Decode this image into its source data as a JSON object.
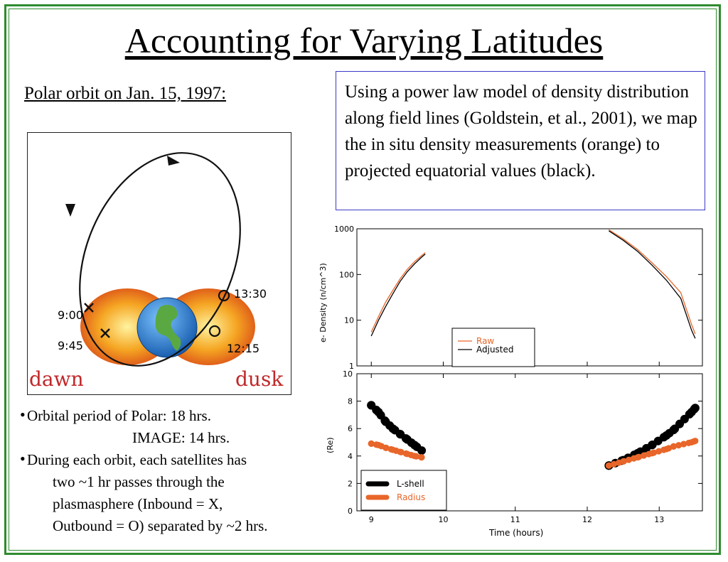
{
  "title": "Accounting for Varying Latitudes",
  "subtitle": "Polar orbit on Jan. 15, 1997:",
  "description": "Using a power law model of density distribution along field lines (Goldstein, et al., 2001), we map the in situ density measurements (orange) to projected equatorial values (black).",
  "orbit_diagram": {
    "labels": {
      "t1": "13:30",
      "t2": "9:00",
      "t3": "9:45",
      "t4": "12:15",
      "dawn": "dawn",
      "dusk": "dusk"
    },
    "colors": {
      "dawn_dusk": "#c0282a",
      "plasmasphere": "#f29a1e",
      "earth": "#2a7fd0",
      "land": "#5aa842"
    }
  },
  "bullets": {
    "b1_line1": "Orbital period of Polar: 18 hrs.",
    "b1_line2": "IMAGE: 14 hrs.",
    "b2_line1": "During each orbit, each satellites has",
    "b2_line2": "two ~1 hr passes through the",
    "b2_line3": "plasmasphere (Inbound = X,",
    "b2_line4": "Outbound = O) separated by ~2 hrs."
  },
  "chart_data": [
    {
      "type": "line",
      "ylabel": "e- Density (n/cm^3)",
      "yscale": "log",
      "ylim": [
        1,
        1000
      ],
      "xlim": [
        8.8,
        13.6
      ],
      "yticks": [
        "1",
        "10",
        "100",
        "1000"
      ],
      "legend_placement": "bottom-center",
      "series": [
        {
          "name": "Raw",
          "color": "#e8662a",
          "x": [
            9.0,
            9.1,
            9.2,
            9.3,
            9.4,
            9.5,
            9.6,
            9.7,
            9.75,
            12.3,
            12.5,
            12.7,
            12.9,
            13.1,
            13.3,
            13.45,
            13.5
          ],
          "y": [
            5.5,
            12,
            25,
            45,
            80,
            130,
            190,
            260,
            300,
            950,
            600,
            350,
            180,
            90,
            40,
            8,
            5
          ]
        },
        {
          "name": "Adjusted",
          "color": "#000000",
          "x": [
            9.0,
            9.1,
            9.2,
            9.3,
            9.4,
            9.5,
            9.6,
            9.7,
            9.75,
            12.3,
            12.5,
            12.7,
            12.9,
            13.1,
            13.3,
            13.45,
            13.5
          ],
          "y": [
            4.5,
            10,
            20,
            38,
            70,
            115,
            170,
            240,
            280,
            900,
            560,
            320,
            160,
            75,
            30,
            6,
            4
          ]
        }
      ]
    },
    {
      "type": "scatter",
      "xlabel": "Time  (hours)",
      "ylabel": "(Re)",
      "ylim": [
        0,
        10
      ],
      "xlim": [
        8.8,
        13.6
      ],
      "xticks": [
        "9",
        "10",
        "11",
        "12",
        "13"
      ],
      "yticks": [
        "0",
        "2",
        "4",
        "6",
        "8",
        "10"
      ],
      "legend_placement": "bottom-left",
      "series": [
        {
          "name": "L-shell",
          "color": "#000000",
          "x": [
            9.0,
            9.1,
            9.2,
            9.3,
            9.4,
            9.5,
            9.6,
            9.7,
            12.3,
            12.5,
            12.7,
            12.9,
            13.1,
            13.2,
            13.45,
            13.5
          ],
          "y": [
            7.7,
            7.2,
            6.5,
            6.0,
            5.6,
            5.2,
            4.8,
            4.4,
            3.3,
            3.7,
            4.2,
            4.8,
            5.5,
            5.9,
            7.2,
            7.5
          ]
        },
        {
          "name": "Radius",
          "color": "#e8662a",
          "x": [
            9.0,
            9.1,
            9.2,
            9.3,
            9.4,
            9.5,
            9.6,
            9.7,
            12.3,
            12.5,
            12.7,
            12.9,
            13.1,
            13.2,
            13.45,
            13.5
          ],
          "y": [
            4.9,
            4.8,
            4.6,
            4.45,
            4.3,
            4.15,
            4.0,
            3.9,
            3.3,
            3.6,
            3.9,
            4.2,
            4.5,
            4.7,
            5.0,
            5.1
          ]
        }
      ]
    }
  ]
}
